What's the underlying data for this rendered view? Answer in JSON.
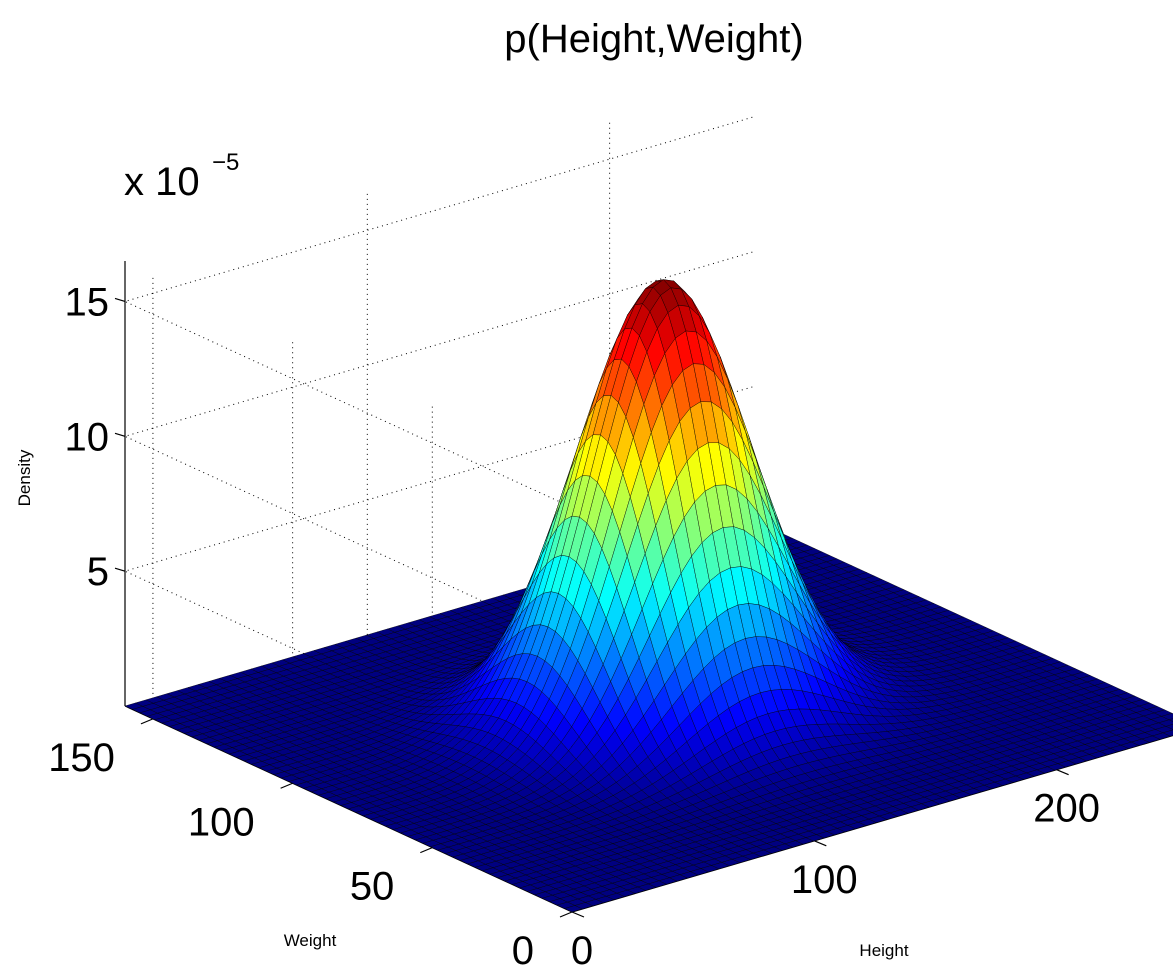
{
  "chart_data": {
    "type": "surface",
    "title": "p(Height,Weight)",
    "xlabel": "Height",
    "ylabel": "Weight",
    "zlabel": "Density",
    "z_multiplier": "x 10",
    "z_multiplier_exponent": "−5",
    "xlim": [
      0,
      260
    ],
    "ylim": [
      0,
      160
    ],
    "zlim": [
      0,
      16.5
    ],
    "x_ticks": [
      0,
      100,
      200
    ],
    "y_ticks": [
      0,
      50,
      100,
      150
    ],
    "z_ticks": [
      5,
      10,
      15
    ],
    "x_tick_labels": [
      "0",
      "100",
      "200"
    ],
    "y_tick_labels": [
      "0",
      "50",
      "100",
      "150"
    ],
    "z_tick_labels": [
      "5",
      "10",
      "15"
    ],
    "grid": true,
    "colormap": "jet",
    "peak": {
      "height": 130,
      "weight": 80,
      "density": 16.2
    },
    "spread": {
      "height_sd": 30,
      "weight_sd": 18
    },
    "units_note": "density values in units of 10^-5"
  }
}
